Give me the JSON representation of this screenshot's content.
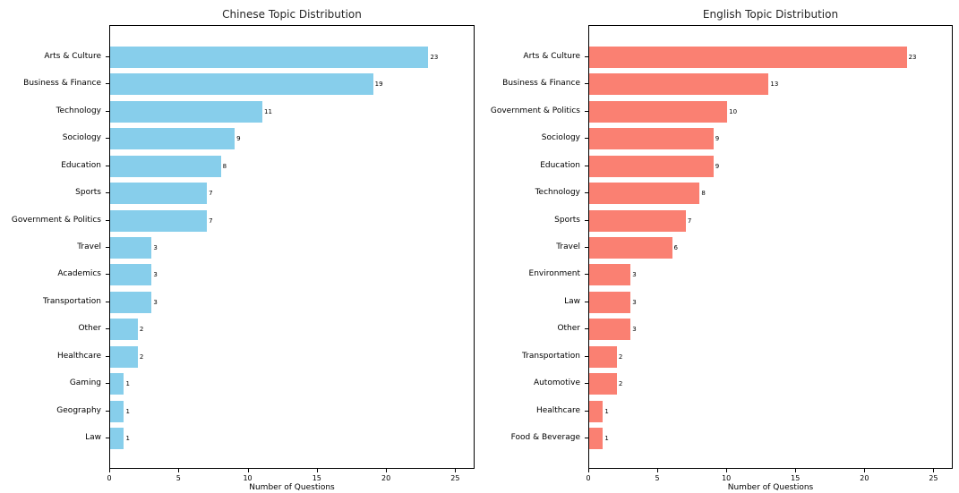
{
  "chart_data": [
    {
      "type": "bar",
      "orientation": "horizontal",
      "title": "Chinese Topic Distribution",
      "xlabel": "Number of Questions",
      "bar_color": "#87CEEB",
      "categories": [
        "Arts & Culture",
        "Business & Finance",
        "Technology",
        "Sociology",
        "Education",
        "Sports",
        "Government & Politics",
        "Travel",
        "Academics",
        "Transportation",
        "Other",
        "Healthcare",
        "Gaming",
        "Geography",
        "Law"
      ],
      "values": [
        23,
        19,
        11,
        9,
        8,
        7,
        7,
        3,
        3,
        3,
        2,
        2,
        1,
        1,
        1
      ],
      "value_labels": [
        "23",
        "19",
        "11",
        "9",
        "8",
        "7",
        "7",
        "3",
        "3",
        "3",
        "2",
        "2",
        "1",
        "1",
        "1"
      ],
      "xticks": [
        0,
        5,
        10,
        15,
        20,
        25
      ],
      "xlim": [
        0,
        26.4
      ],
      "grid": false,
      "legend": "none"
    },
    {
      "type": "bar",
      "orientation": "horizontal",
      "title": "English Topic Distribution",
      "xlabel": "Number of Questions",
      "bar_color": "#FA8072",
      "categories": [
        "Arts & Culture",
        "Business & Finance",
        "Government & Politics",
        "Sociology",
        "Education",
        "Technology",
        "Sports",
        "Travel",
        "Environment",
        "Law",
        "Other",
        "Transportation",
        "Automotive",
        "Healthcare",
        "Food & Beverage"
      ],
      "values": [
        23,
        13,
        10,
        9,
        9,
        8,
        7,
        6,
        3,
        3,
        3,
        2,
        2,
        1,
        1
      ],
      "value_labels": [
        "23",
        "13",
        "10",
        "9",
        "9",
        "8",
        "7",
        "6",
        "3",
        "3",
        "3",
        "2",
        "2",
        "1",
        "1"
      ],
      "xticks": [
        0,
        5,
        10,
        15,
        20,
        25
      ],
      "xlim": [
        0,
        26.4
      ],
      "grid": false,
      "legend": "none"
    }
  ]
}
